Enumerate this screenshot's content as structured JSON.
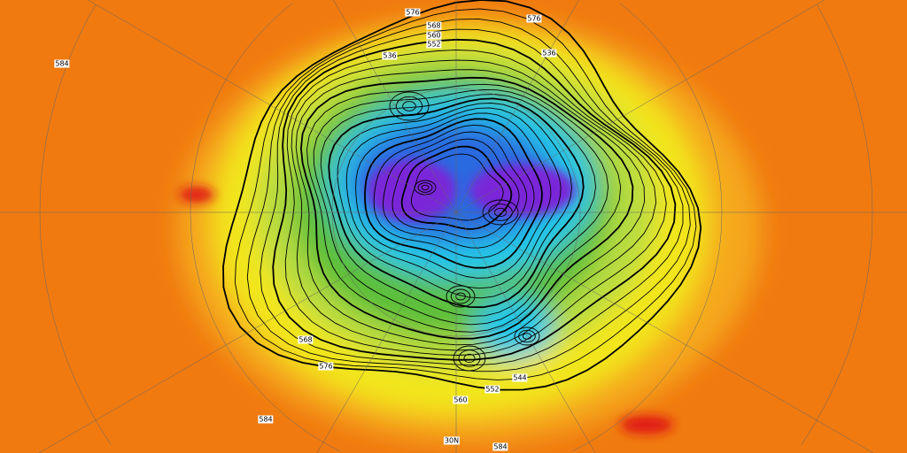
{
  "map": {
    "type": "polar-stereographic geopotential height map",
    "colors": {
      "outer": "#f07a10",
      "warm": "#f5a81a",
      "yellow": "#f2e61a",
      "lightgreen": "#b8dc40",
      "green": "#5cbf3a",
      "cyan": "#20c8e8",
      "blue": "#2a6ae0",
      "purple": "#7a28d8",
      "hot": "#e01818"
    },
    "contour_labels": [
      {
        "text": "576"
      },
      {
        "text": "576"
      },
      {
        "text": "568"
      },
      {
        "text": "560"
      },
      {
        "text": "552"
      },
      {
        "text": "536"
      },
      {
        "text": "584"
      },
      {
        "text": "584"
      },
      {
        "text": "584"
      },
      {
        "text": "576"
      },
      {
        "text": "568"
      },
      {
        "text": "560"
      },
      {
        "text": "544"
      },
      {
        "text": "552"
      },
      {
        "text": "536"
      },
      {
        "text": "30N"
      }
    ]
  }
}
